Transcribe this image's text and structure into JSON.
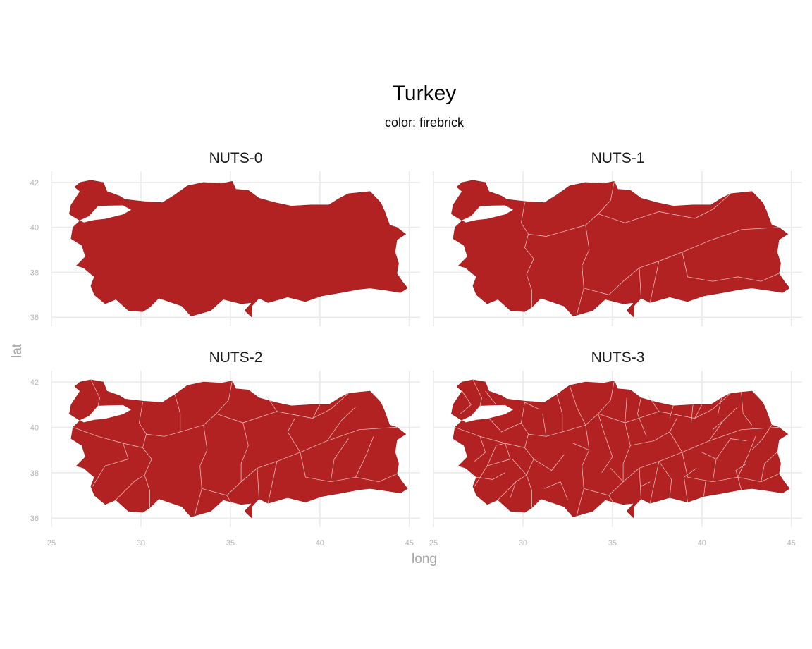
{
  "title": "Turkey",
  "subtitle": "color: firebrick",
  "fill_color": "#b22222",
  "border_color": "#f2c9c9",
  "grid_color": "#ebebeb",
  "axes": {
    "x_label": "long",
    "y_label": "lat",
    "x_ticks": [
      25,
      30,
      35,
      40,
      45
    ],
    "y_ticks": [
      36,
      38,
      40,
      42
    ],
    "x_range": [
      25,
      45.6
    ],
    "y_range": [
      35.6,
      42.5
    ]
  },
  "panels": [
    {
      "label": "NUTS-0",
      "level": 0
    },
    {
      "label": "NUTS-1",
      "level": 1
    },
    {
      "label": "NUTS-2",
      "level": 2
    },
    {
      "label": "NUTS-3",
      "level": 3
    }
  ],
  "chart_data": {
    "type": "map",
    "title": "Turkey",
    "subtitle": "color: firebrick",
    "xlabel": "long",
    "ylabel": "lat",
    "facets": [
      "NUTS-0",
      "NUTS-1",
      "NUTS-2",
      "NUTS-3"
    ],
    "xlim": [
      25,
      45.6
    ],
    "ylim": [
      35.6,
      42.5
    ],
    "x_ticks": [
      25,
      30,
      35,
      40,
      45
    ],
    "y_ticks": [
      36,
      38,
      40,
      42
    ],
    "grid": true,
    "fill": "firebrick"
  }
}
